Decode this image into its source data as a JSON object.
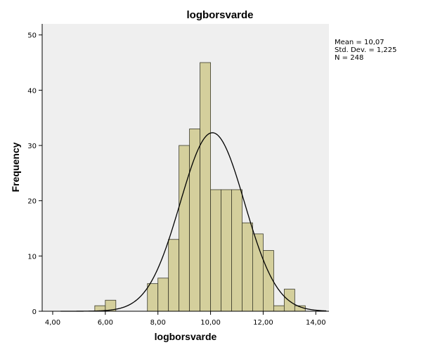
{
  "chart_data": {
    "type": "histogram",
    "title": "logborsvarde",
    "xlabel": "logborsvarde",
    "ylabel": "Frequency",
    "xlim": [
      3.6,
      14.5
    ],
    "ylim": [
      0,
      52
    ],
    "x_ticks": [
      4,
      6,
      8,
      10,
      12,
      14
    ],
    "x_tick_labels": [
      "4,00",
      "6,00",
      "8,00",
      "10,00",
      "12,00",
      "14,00"
    ],
    "y_ticks": [
      0,
      10,
      20,
      30,
      40,
      50
    ],
    "y_tick_labels": [
      "0",
      "10",
      "20",
      "30",
      "40",
      "50"
    ],
    "bin_width": 0.4,
    "bins": [
      {
        "start": 5.6,
        "count": 1
      },
      {
        "start": 6.0,
        "count": 2
      },
      {
        "start": 7.6,
        "count": 5
      },
      {
        "start": 8.0,
        "count": 6
      },
      {
        "start": 8.4,
        "count": 13
      },
      {
        "start": 8.8,
        "count": 30
      },
      {
        "start": 9.2,
        "count": 33
      },
      {
        "start": 9.6,
        "count": 45
      },
      {
        "start": 10.0,
        "count": 22
      },
      {
        "start": 10.4,
        "count": 22
      },
      {
        "start": 10.8,
        "count": 22
      },
      {
        "start": 11.2,
        "count": 16
      },
      {
        "start": 11.6,
        "count": 14
      },
      {
        "start": 12.0,
        "count": 11
      },
      {
        "start": 12.4,
        "count": 1
      },
      {
        "start": 12.8,
        "count": 4
      },
      {
        "start": 13.2,
        "count": 1
      }
    ],
    "normal_curve": {
      "mean": 10.07,
      "sd": 1.225,
      "n": 248
    },
    "stats_labels": [
      "Mean = 10,07",
      "Std. Dev. = 1,225",
      "N = 248"
    ],
    "grid": false,
    "colors": {
      "bar_fill": "#d4cf9c",
      "bar_stroke": "#3a3a2a",
      "plot_bg": "#efefef",
      "curve": "#000000"
    }
  }
}
